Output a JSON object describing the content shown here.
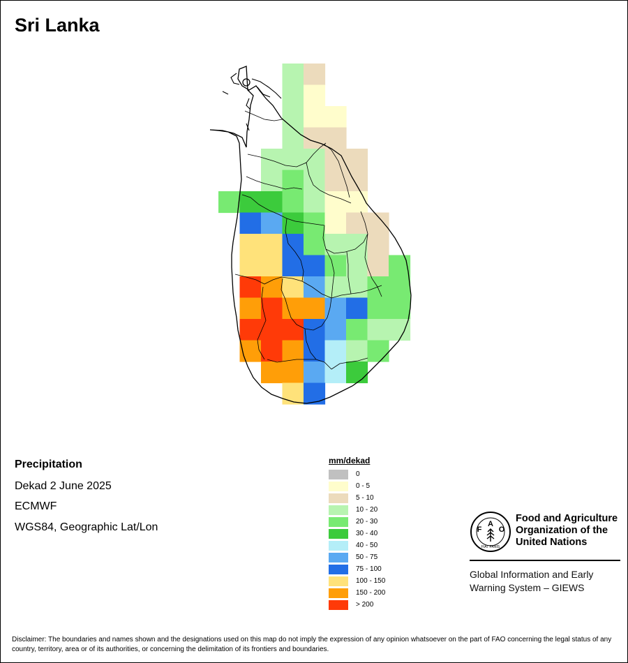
{
  "title": "Sri Lanka",
  "info": {
    "variable": "Precipitation",
    "period": "Dekad 2 June 2025",
    "model": "ECMWF",
    "projection": "WGS84, Geographic Lat/Lon"
  },
  "legend": {
    "title": "mm/dekad",
    "classes": [
      {
        "label": "0",
        "color": "#c0c0c0"
      },
      {
        "label": "0 - 5",
        "color": "#fffdcc"
      },
      {
        "label": "5 - 10",
        "color": "#ecdbbc"
      },
      {
        "label": "10 - 20",
        "color": "#b7f4b0"
      },
      {
        "label": "20 - 30",
        "color": "#78ea72"
      },
      {
        "label": "30 - 40",
        "color": "#3ccb3c"
      },
      {
        "label": "40 - 50",
        "color": "#b4eef8"
      },
      {
        "label": "50 - 75",
        "color": "#5aa9f2"
      },
      {
        "label": "75 - 100",
        "color": "#226ee6"
      },
      {
        "label": "100 - 150",
        "color": "#ffe27a"
      },
      {
        "label": "150 - 200",
        "color": "#ff9e08"
      },
      {
        "label": "> 200",
        "color": "#ff3a08"
      }
    ]
  },
  "organization": {
    "name_line1": "Food and Agriculture",
    "name_line2": "Organization of the",
    "name_line3": "United Nations",
    "system_line1": "Global Information and Early",
    "system_line2": "Warning System – GIEWS",
    "logo_letters": [
      "F",
      "A",
      "O"
    ],
    "logo_motto": "FIAT PANIS"
  },
  "disclaimer": "Disclaimer: The boundaries and names shown and the designations used on this map do not imply the expression of any opinion whatsoever on the part of FAO concerning the legal status of any country, territory, area or of its authorities, or concerning the delimitation of its frontiers and boundaries.",
  "precipitation_grid": [
    [
      null,
      null,
      null,
      3,
      2,
      null,
      null,
      null,
      null
    ],
    [
      null,
      null,
      null,
      3,
      1,
      null,
      null,
      null,
      null
    ],
    [
      null,
      null,
      null,
      3,
      1,
      1,
      null,
      null,
      null
    ],
    [
      null,
      null,
      null,
      3,
      2,
      2,
      null,
      null,
      null
    ],
    [
      null,
      null,
      3,
      3,
      3,
      2,
      2,
      null,
      null
    ],
    [
      null,
      null,
      3,
      4,
      3,
      2,
      2,
      null,
      null
    ],
    [
      4,
      5,
      5,
      4,
      3,
      1,
      1,
      null,
      null
    ],
    [
      null,
      8,
      7,
      5,
      4,
      1,
      2,
      2,
      null
    ],
    [
      null,
      9,
      9,
      8,
      4,
      3,
      3,
      2,
      null
    ],
    [
      null,
      9,
      9,
      8,
      8,
      4,
      3,
      2,
      4
    ],
    [
      null,
      11,
      10,
      9,
      7,
      3,
      3,
      4,
      4
    ],
    [
      null,
      10,
      11,
      10,
      10,
      7,
      8,
      4,
      4
    ],
    [
      null,
      11,
      11,
      11,
      8,
      7,
      4,
      3,
      3
    ],
    [
      null,
      10,
      11,
      10,
      8,
      6,
      3,
      4,
      null
    ],
    [
      null,
      null,
      10,
      10,
      7,
      6,
      5,
      null,
      null
    ],
    [
      null,
      null,
      null,
      9,
      8,
      null,
      null,
      null,
      null
    ]
  ]
}
